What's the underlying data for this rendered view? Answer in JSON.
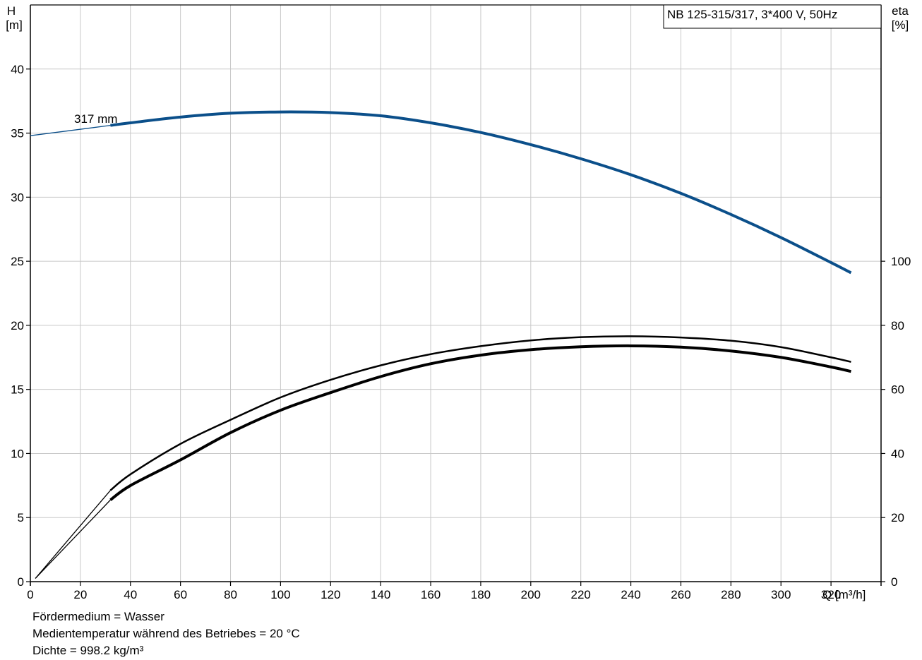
{
  "chart_data": {
    "type": "line",
    "title": "NB 125-315/317, 3*400 V, 50Hz",
    "xlabel": "Q [m³/h]",
    "ylabel_left": [
      "H",
      "[m]"
    ],
    "ylabel_right": [
      "eta",
      "[%]"
    ],
    "xlim": [
      0,
      340
    ],
    "ylim_left": [
      0,
      45
    ],
    "ylim_right": [
      0,
      100
    ],
    "x_ticks": [
      0,
      20,
      40,
      60,
      80,
      100,
      120,
      140,
      160,
      180,
      200,
      220,
      240,
      260,
      280,
      300,
      320
    ],
    "y_ticks_left": [
      0,
      5,
      10,
      15,
      20,
      25,
      30,
      35,
      40
    ],
    "y_ticks_right": [
      0,
      20,
      40,
      60,
      80,
      100
    ],
    "grid": true,
    "colors": {
      "head": "#0b4f8a",
      "efficiency": "#000000",
      "grid": "#c8c8c8"
    },
    "series": [
      {
        "name": "317 mm",
        "axis": "left",
        "x": [
          0,
          32,
          40,
          60,
          80,
          100,
          120,
          140,
          160,
          180,
          200,
          220,
          240,
          260,
          280,
          300,
          320,
          328
        ],
        "y": [
          34.8,
          35.6,
          35.8,
          36.25,
          36.55,
          36.65,
          36.6,
          36.35,
          35.8,
          35.05,
          34.1,
          33.0,
          31.75,
          30.3,
          28.65,
          26.85,
          24.9,
          24.1
        ]
      },
      {
        "axis": "right",
        "x": [
          2,
          32,
          40,
          60,
          80,
          100,
          120,
          140,
          160,
          180,
          200,
          220,
          240,
          260,
          280,
          300,
          320,
          328
        ],
        "y": [
          1.0,
          25.5,
          30.0,
          38.0,
          46.5,
          53.5,
          59.0,
          64.0,
          68.0,
          70.7,
          72.4,
          73.3,
          73.6,
          73.2,
          72.0,
          70.0,
          67.0,
          65.6
        ]
      },
      {
        "axis": "right",
        "x": [
          2,
          32,
          40,
          60,
          80,
          100,
          120,
          140,
          160,
          180,
          200,
          220,
          240,
          260,
          280,
          300,
          320,
          328
        ],
        "y": [
          1.0,
          28.5,
          33.5,
          43.0,
          50.5,
          57.5,
          63.0,
          67.5,
          71.0,
          73.5,
          75.3,
          76.3,
          76.6,
          76.2,
          75.2,
          73.2,
          70.0,
          68.6
        ]
      }
    ],
    "notes": [
      "Fördermedium = Wasser",
      "Medientemperatur während des Betriebes = 20 °C",
      "Dichte = 998.2 kg/m³"
    ]
  }
}
